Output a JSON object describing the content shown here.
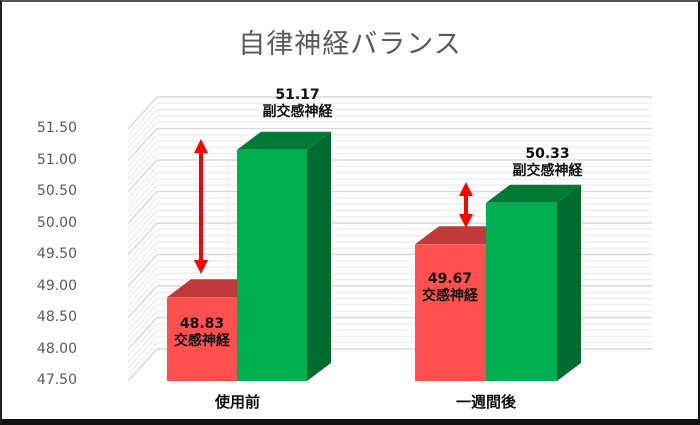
{
  "chart_data": {
    "type": "bar",
    "title": "自律神経バランス",
    "categories": [
      "使用前",
      "一週間後"
    ],
    "series": [
      {
        "name": "交感神経",
        "values": [
          48.83,
          49.67
        ],
        "color": "#FF5050"
      },
      {
        "name": "副交感神経",
        "values": [
          51.17,
          50.33
        ],
        "color": "#00B050"
      }
    ],
    "ylim": [
      47.5,
      51.5
    ],
    "yticks": [
      "47.50",
      "48.00",
      "48.50",
      "49.00",
      "49.50",
      "50.00",
      "50.50",
      "51.00",
      "51.50"
    ],
    "xlabel": "",
    "ylabel": "",
    "grid": true,
    "style": "3d-clustered-column",
    "annotations": [
      {
        "type": "double-arrow",
        "category": "使用前",
        "color": "#FF0000"
      },
      {
        "type": "double-arrow",
        "category": "一週間後",
        "color": "#FF0000"
      }
    ],
    "data_labels": [
      {
        "category": "使用前",
        "series": "交感神経",
        "value": "48.83",
        "text": "交感神経"
      },
      {
        "category": "使用前",
        "series": "副交感神経",
        "value": "51.17",
        "text": "副交感神経"
      },
      {
        "category": "一週間後",
        "series": "交感神経",
        "value": "49.67",
        "text": "交感神経"
      },
      {
        "category": "一週間後",
        "series": "副交感神経",
        "value": "50.33",
        "text": "副交感神経"
      }
    ]
  }
}
